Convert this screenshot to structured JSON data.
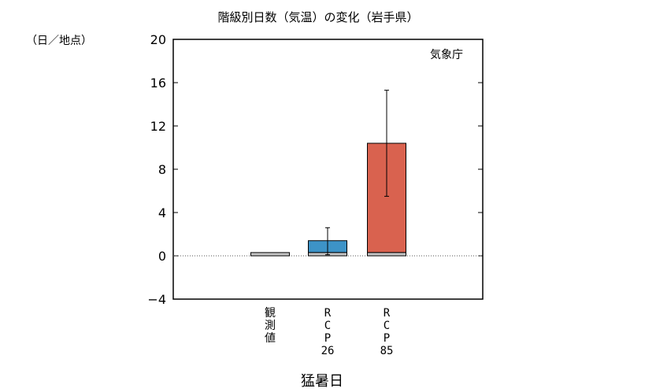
{
  "chart_data": {
    "type": "bar",
    "title": "階級別日数（気温）の変化（岩手県）",
    "unit_label": "（日／地点）",
    "source": "気象庁",
    "xlabel": "猛暑日",
    "ylim": [
      -4,
      20
    ],
    "yticks": [
      -4,
      0,
      4,
      8,
      12,
      16,
      20
    ],
    "categories": [
      {
        "label_lines": [
          "観",
          "測",
          "値"
        ]
      },
      {
        "label_lines": [
          "R",
          "C",
          "P",
          "26"
        ]
      },
      {
        "label_lines": [
          "R",
          "C",
          "P",
          "85"
        ]
      }
    ],
    "observed_value": 0.3,
    "future_bars": [
      {
        "category_index": 1,
        "change": 1.1,
        "error_low": 0.1,
        "error_high": 2.6,
        "color": "#3d93c7"
      },
      {
        "category_index": 2,
        "change": 10.1,
        "error_low": 5.5,
        "error_high": 15.3,
        "color": "#d9624f"
      }
    ],
    "colors": {
      "observed": "#c4c4c4",
      "zero_line": "#555555"
    }
  }
}
